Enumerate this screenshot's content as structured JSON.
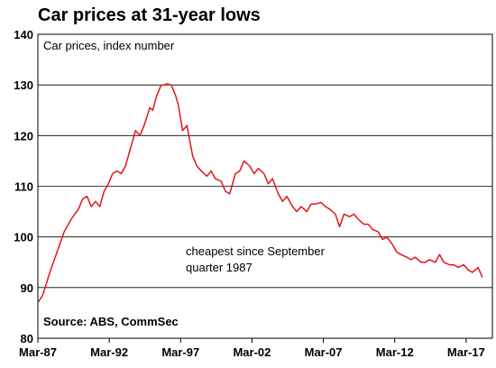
{
  "chart_data": {
    "type": "line",
    "title": "Car prices at 31-year lows",
    "subtitle": "Car prices, index number",
    "source": "Source: ABS, CommSec",
    "annotation": "cheapest since September quarter 1987",
    "annotation_lines": [
      "cheapest since September",
      "quarter 1987"
    ],
    "xlabel": "",
    "ylabel": "",
    "ylim": [
      80,
      140
    ],
    "yticks": [
      80,
      90,
      100,
      110,
      120,
      130,
      140
    ],
    "xlim": [
      1987.16,
      2019.0
    ],
    "xticks": [
      {
        "value": 1987.16,
        "label": "Mar-87"
      },
      {
        "value": 1992.16,
        "label": "Mar-92"
      },
      {
        "value": 1997.16,
        "label": "Mar-97"
      },
      {
        "value": 2002.16,
        "label": "Mar-02"
      },
      {
        "value": 2007.16,
        "label": "Mar-07"
      },
      {
        "value": 2012.16,
        "label": "Mar-12"
      },
      {
        "value": 2017.16,
        "label": "Mar-17"
      }
    ],
    "grid": "horizontal",
    "line_color": "#e0161b",
    "series": [
      {
        "x": [
          1987.2,
          1987.5,
          1988.0,
          1988.5,
          1989.0,
          1989.5,
          1990.0,
          1990.3,
          1990.6,
          1990.9,
          1991.2,
          1991.5,
          1991.8,
          1992.1,
          1992.4,
          1992.7,
          1993.0,
          1993.3,
          1993.6,
          1994.0,
          1994.3,
          1994.6,
          1995.0,
          1995.2,
          1995.5,
          1995.8,
          1996.0,
          1996.2,
          1996.5,
          1996.8,
          1997.0,
          1997.3,
          1997.6,
          1998.0,
          1998.3,
          1998.6,
          1999.0,
          1999.3,
          1999.6,
          2000.0,
          2000.3,
          2000.6,
          2001.0,
          2001.3,
          2001.6,
          2002.0,
          2002.3,
          2002.6,
          2003.0,
          2003.3,
          2003.6,
          2004.0,
          2004.3,
          2004.6,
          2005.0,
          2005.3,
          2005.6,
          2006.0,
          2006.3,
          2006.6,
          2007.0,
          2007.3,
          2007.6,
          2008.0,
          2008.3,
          2008.6,
          2009.0,
          2009.3,
          2009.6,
          2010.0,
          2010.3,
          2010.6,
          2011.0,
          2011.3,
          2011.6,
          2012.0,
          2012.3,
          2012.6,
          2013.0,
          2013.3,
          2013.6,
          2014.0,
          2014.3,
          2014.6,
          2015.0,
          2015.3,
          2015.6,
          2016.0,
          2016.3,
          2016.6,
          2017.0,
          2017.3,
          2017.6,
          2018.0,
          2018.3
        ],
        "values": [
          87.2,
          88.5,
          93.0,
          97.0,
          101.0,
          103.5,
          105.5,
          107.5,
          108.0,
          106.0,
          107.0,
          106.0,
          109.0,
          110.5,
          112.5,
          113.0,
          112.5,
          114.0,
          117.0,
          121.0,
          120.0,
          122.0,
          125.5,
          125.0,
          128.0,
          130.0,
          130.0,
          130.2,
          130.0,
          128.0,
          126.0,
          121.0,
          122.0,
          116.0,
          114.0,
          113.0,
          112.0,
          113.0,
          111.5,
          111.0,
          109.0,
          108.5,
          112.5,
          113.0,
          115.0,
          114.0,
          112.5,
          113.5,
          112.5,
          110.5,
          111.5,
          108.5,
          107.0,
          108.0,
          106.0,
          105.0,
          106.0,
          105.0,
          106.5,
          106.5,
          106.8,
          106.0,
          105.5,
          104.5,
          102.0,
          104.5,
          104.0,
          104.5,
          103.5,
          102.5,
          102.5,
          101.5,
          101.0,
          99.5,
          100.0,
          98.5,
          97.0,
          96.5,
          96.0,
          95.5,
          96.0,
          95.0,
          95.0,
          95.5,
          95.0,
          96.5,
          95.0,
          94.5,
          94.5,
          94.0,
          94.5,
          93.5,
          93.0,
          94.0,
          92.0
        ]
      }
    ]
  }
}
